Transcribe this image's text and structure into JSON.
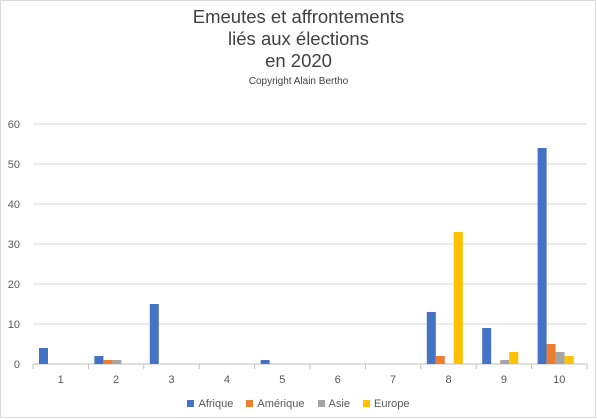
{
  "chart_data": {
    "type": "bar",
    "title_lines": [
      "Emeutes et affrontements",
      "liés aux élections",
      "en 2020"
    ],
    "subtitle": "Copyright Alain Bertho",
    "categories": [
      "1",
      "2",
      "3",
      "4",
      "5",
      "6",
      "7",
      "8",
      "9",
      "10"
    ],
    "series": [
      {
        "name": "Afrique",
        "color": "#4472c4",
        "values": [
          4,
          2,
          15,
          0,
          1,
          0,
          0,
          13,
          9,
          54
        ]
      },
      {
        "name": "Amérique",
        "color": "#ed7d31",
        "values": [
          0,
          1,
          0,
          0,
          0,
          0,
          0,
          2,
          0,
          5
        ]
      },
      {
        "name": "Asie",
        "color": "#a5a5a5",
        "values": [
          0,
          1,
          0,
          0,
          0,
          0,
          0,
          0,
          1,
          3
        ]
      },
      {
        "name": "Europe",
        "color": "#ffc000",
        "values": [
          0,
          0,
          0,
          0,
          0,
          0,
          0,
          33,
          3,
          2
        ]
      }
    ],
    "y_ticks": [
      "0",
      "10",
      "20",
      "30",
      "40",
      "50",
      "60"
    ],
    "ylim": [
      0,
      60
    ],
    "grid": true,
    "legend_position": "bottom"
  }
}
